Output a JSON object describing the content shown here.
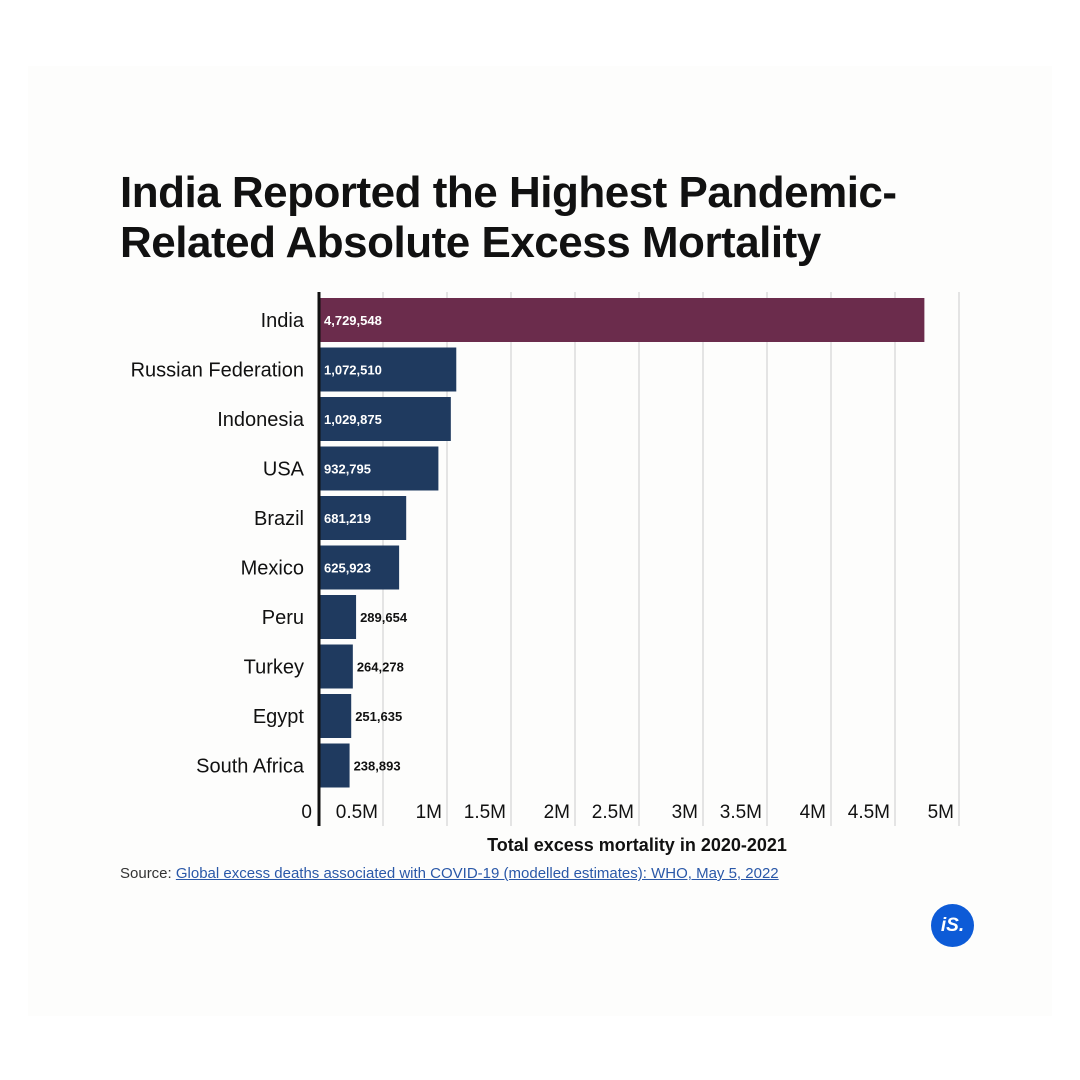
{
  "title": "India Reported the Highest Pandemic-Related Absolute Excess Mortality",
  "source": {
    "prefix": "Source:",
    "link_text": "Global excess deaths associated with COVID-19 (modelled estimates): WHO, May 5, 2022"
  },
  "logo_text": "iS.",
  "colors": {
    "highlight": "#6b2c4c",
    "bar": "#1f3a5f",
    "grid": "#cccccc",
    "axis": "#111111",
    "text": "#111111"
  },
  "chart_data": {
    "type": "bar",
    "orientation": "horizontal",
    "categories": [
      "India",
      "Russian Federation",
      "Indonesia",
      "USA",
      "Brazil",
      "Mexico",
      "Peru",
      "Turkey",
      "Egypt",
      "South Africa"
    ],
    "values": [
      4729548,
      1072510,
      1029875,
      932795,
      681219,
      625923,
      289654,
      264278,
      251635,
      238893
    ],
    "value_labels": [
      "4,729,548",
      "1,072,510",
      "1,029,875",
      "932,795",
      "681,219",
      "625,923",
      "289,654",
      "264,278",
      "251,635",
      "238,893"
    ],
    "highlight_index": 0,
    "xlabel": "Total excess mortality in 2020-2021",
    "xlim": [
      0,
      5000000
    ],
    "xticks": [
      0,
      500000,
      1000000,
      1500000,
      2000000,
      2500000,
      3000000,
      3500000,
      4000000,
      4500000,
      5000000
    ],
    "xtick_labels": [
      "0",
      "0.5M",
      "1M",
      "1.5M",
      "2M",
      "2.5M",
      "3M",
      "3.5M",
      "4M",
      "4.5M",
      "5M"
    ],
    "grid": true
  }
}
